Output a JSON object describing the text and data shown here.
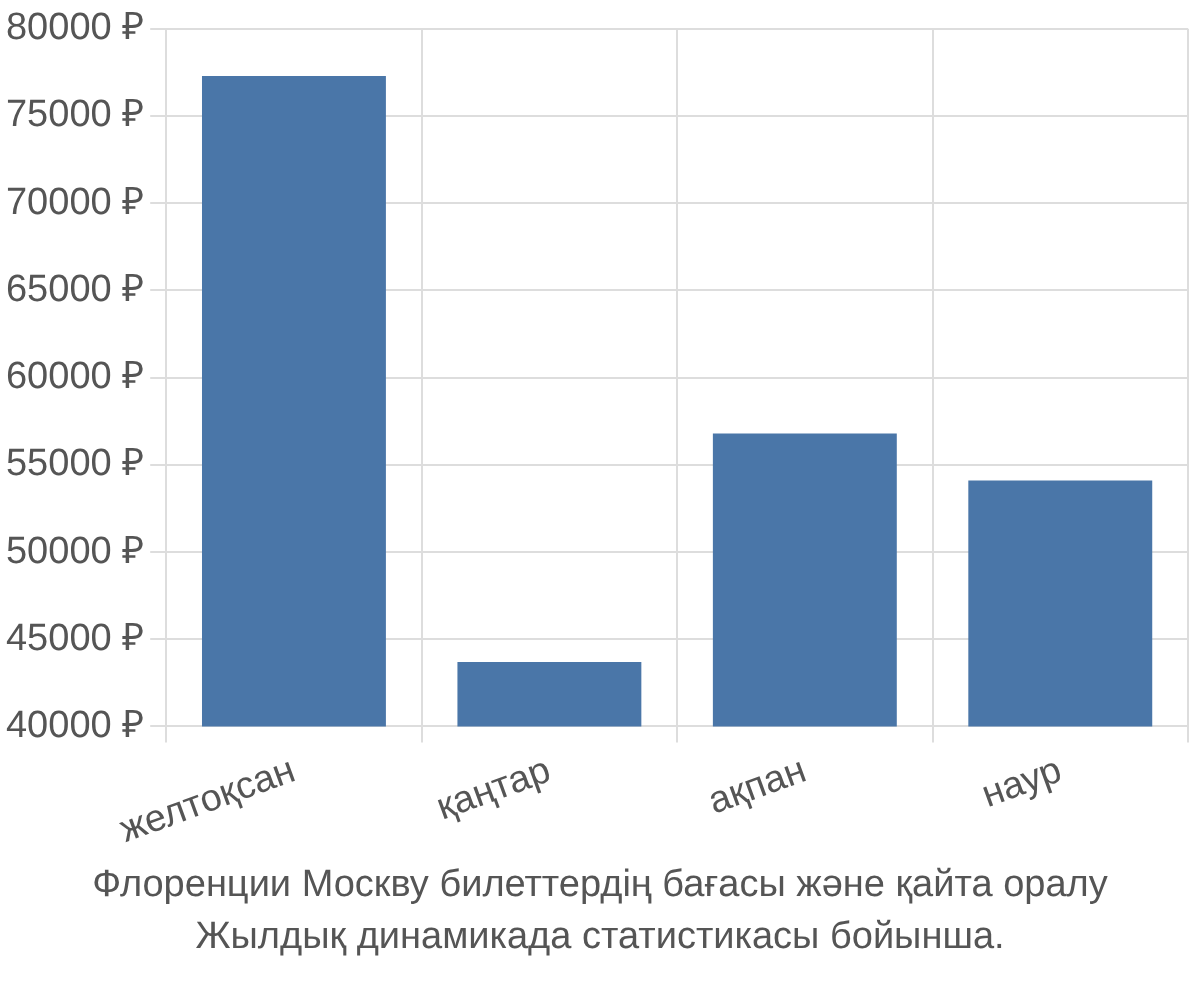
{
  "chart_data": {
    "type": "bar",
    "categories": [
      "желтоқсан",
      "қаңтар",
      "ақпан",
      "наур"
    ],
    "values": [
      77300,
      43700,
      56800,
      54100
    ],
    "color": "#4a76a8",
    "ylim": [
      40000,
      80000
    ],
    "yticks": [
      {
        "value": 40000,
        "label": "40000 ₽"
      },
      {
        "value": 45000,
        "label": "45000 ₽"
      },
      {
        "value": 50000,
        "label": "50000 ₽"
      },
      {
        "value": 55000,
        "label": "55000 ₽"
      },
      {
        "value": 60000,
        "label": "60000 ₽"
      },
      {
        "value": 65000,
        "label": "65000 ₽"
      },
      {
        "value": 70000,
        "label": "70000 ₽"
      },
      {
        "value": 75000,
        "label": "75000 ₽"
      },
      {
        "value": 80000,
        "label": "80000 ₽"
      }
    ],
    "grid": true,
    "annotations": [
      "Флоренции Москву билеттердің бағасы және қайта оралу",
      "Жылдық динамикада статистикасы бойынша."
    ]
  }
}
